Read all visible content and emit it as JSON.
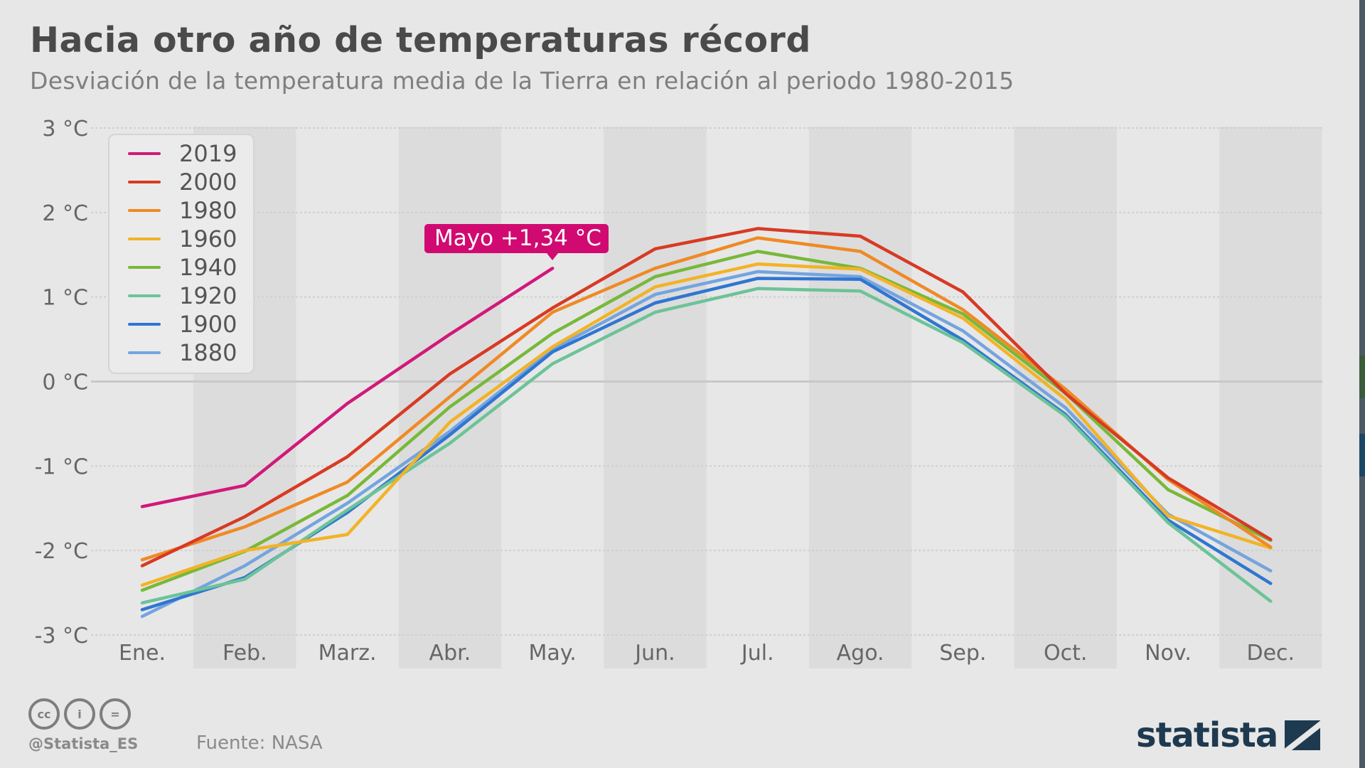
{
  "header": {
    "title": "Hacia otro año de temperaturas récord",
    "subtitle": "Desviación de la temperatura media de la Tierra en relación al periodo 1980-2015"
  },
  "annotation": {
    "label": "Mayo +1,34 °C",
    "series": "2019",
    "category": "May.",
    "value": 1.34
  },
  "footer": {
    "license_icons": [
      "cc-icon",
      "by-icon",
      "nd-icon"
    ],
    "license_glyphs": [
      "cc",
      "i",
      "="
    ],
    "handle": "@Statista_ES",
    "source": "Fuente: NASA",
    "brand": "statista"
  },
  "chart_data": {
    "type": "line",
    "title": "Hacia otro año de temperaturas récord",
    "subtitle": "Desviación de la temperatura media de la Tierra en relación al periodo 1980-2015",
    "xlabel": "",
    "ylabel": "",
    "categories": [
      "Ene.",
      "Feb.",
      "Marz.",
      "Abr.",
      "May.",
      "Jun.",
      "Jul.",
      "Ago.",
      "Sep.",
      "Oct.",
      "Nov.",
      "Dec."
    ],
    "ylim": [
      -3,
      3
    ],
    "yticks": [
      3,
      2,
      1,
      0,
      -1,
      -2,
      -3
    ],
    "ytick_labels": [
      "3 °C",
      "2 °C",
      "1 °C",
      "0 °C",
      "-1 °C",
      "-2 °C",
      "-3 °C"
    ],
    "grid": true,
    "alternating_column_bands": true,
    "legend_position": "top-left",
    "series": [
      {
        "name": "2019",
        "color": "#d1197a",
        "values": [
          -1.48,
          -1.23,
          -0.26,
          0.56,
          1.34,
          null,
          null,
          null,
          null,
          null,
          null,
          null
        ]
      },
      {
        "name": "2000",
        "color": "#d83a24",
        "values": [
          -2.18,
          -1.6,
          -0.89,
          0.09,
          0.87,
          1.57,
          1.81,
          1.72,
          1.06,
          -0.14,
          -1.14,
          -1.87
        ]
      },
      {
        "name": "1980",
        "color": "#ef8a25",
        "values": [
          -2.11,
          -1.72,
          -1.19,
          -0.18,
          0.82,
          1.34,
          1.7,
          1.54,
          0.85,
          -0.09,
          -1.16,
          -1.96
        ]
      },
      {
        "name": "1960",
        "color": "#f2b327",
        "values": [
          -2.41,
          -2.0,
          -1.81,
          -0.48,
          0.41,
          1.12,
          1.39,
          1.33,
          0.75,
          -0.21,
          -1.59,
          -1.97
        ]
      },
      {
        "name": "1940",
        "color": "#79b83a",
        "values": [
          -2.47,
          -2.01,
          -1.35,
          -0.3,
          0.57,
          1.24,
          1.54,
          1.34,
          0.8,
          -0.14,
          -1.28,
          -1.88
        ]
      },
      {
        "name": "1920",
        "color": "#6cc398",
        "values": [
          -2.62,
          -2.34,
          -1.52,
          -0.73,
          0.21,
          0.82,
          1.1,
          1.07,
          0.46,
          -0.41,
          -1.67,
          -2.6
        ]
      },
      {
        "name": "1900",
        "color": "#2f76d2",
        "values": [
          -2.7,
          -2.32,
          -1.55,
          -0.63,
          0.35,
          0.93,
          1.22,
          1.21,
          0.49,
          -0.39,
          -1.64,
          -2.39
        ]
      },
      {
        "name": "1880",
        "color": "#74a4e0",
        "values": [
          -2.78,
          -2.18,
          -1.44,
          -0.59,
          0.38,
          1.03,
          1.3,
          1.24,
          0.6,
          -0.31,
          -1.57,
          -2.24
        ]
      }
    ]
  }
}
